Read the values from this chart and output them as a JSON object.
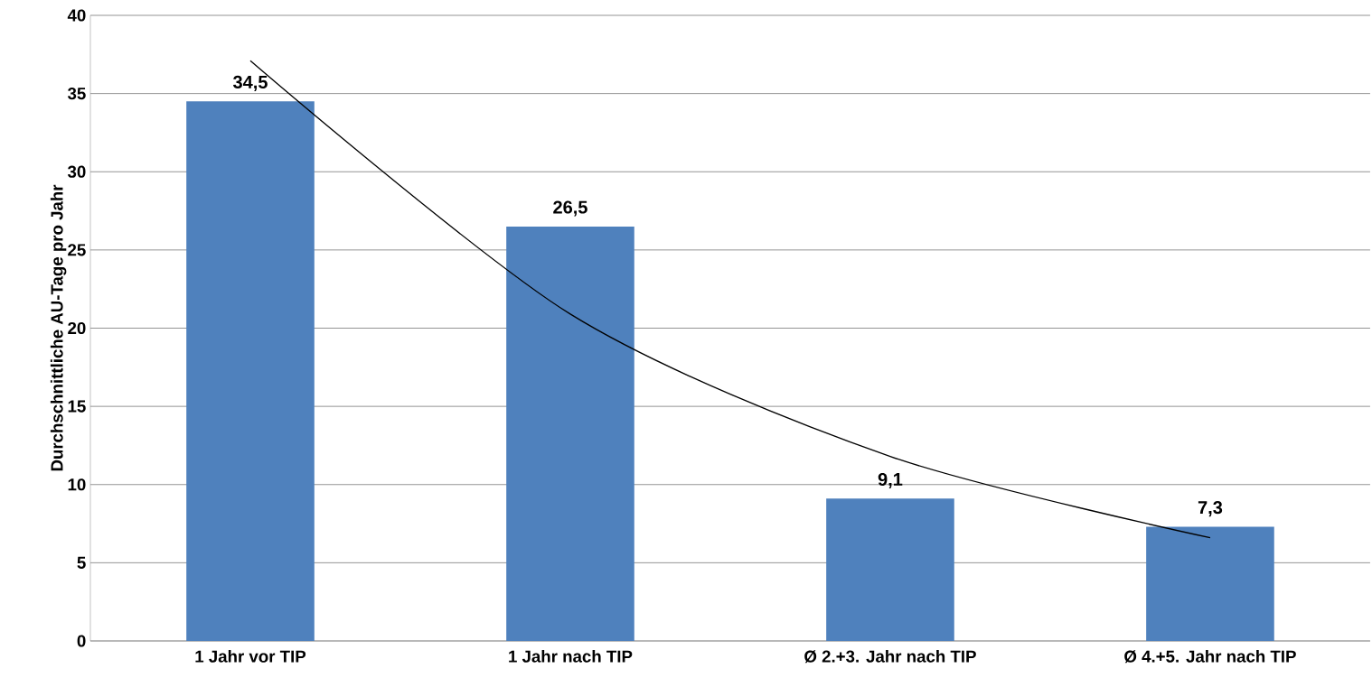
{
  "chart_data": {
    "type": "bar",
    "ylabel": "Durchschnittliche AU-Tage pro Jahr",
    "categories": [
      "1 Jahr vor TIP",
      "1 Jahr nach TIP",
      "Ø 2.+3. Jahr nach TIP",
      "Ø 4.+5. Jahr nach TIP"
    ],
    "ylim": [
      0,
      40
    ],
    "yticks": [
      0,
      5,
      10,
      15,
      20,
      25,
      30,
      35,
      40
    ],
    "grid": "y",
    "series": [
      {
        "color": "#4f81bd",
        "values": [
          34.5,
          26.5,
          9.1,
          7.3
        ],
        "value_labels": [
          "34,5",
          "26,5",
          "9,1",
          "7,3"
        ]
      },
      {
        "type": "line",
        "color": "#000000",
        "marker": "none",
        "values": [
          37.1,
          20.9,
          11.8,
          6.6
        ]
      }
    ]
  }
}
